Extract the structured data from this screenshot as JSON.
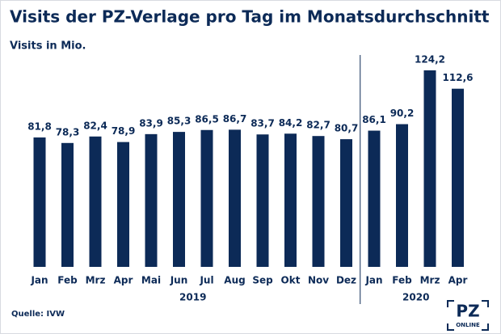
{
  "chart_data": {
    "type": "bar",
    "title": "Visits der PZ-Verlage pro Tag im Monatsdurchschnitt",
    "subtitle": "Visits in Mio.",
    "source": "Quelle: IVW",
    "color": "#0c2a57",
    "groups": [
      {
        "label": "2019",
        "categories": [
          "Jan",
          "Feb",
          "Mrz",
          "Apr",
          "Mai",
          "Jun",
          "Jul",
          "Aug",
          "Sep",
          "Okt",
          "Nov",
          "Dez"
        ],
        "values": [
          81.8,
          78.3,
          82.4,
          78.9,
          83.9,
          85.3,
          86.5,
          86.7,
          83.7,
          84.2,
          82.7,
          80.7
        ],
        "value_labels": [
          "81,8",
          "78,3",
          "82,4",
          "78,9",
          "83,9",
          "85,3",
          "86,5",
          "86,7",
          "83,7",
          "84,2",
          "82,7",
          "80,7"
        ]
      },
      {
        "label": "2020",
        "categories": [
          "Jan",
          "Feb",
          "Mrz",
          "Apr"
        ],
        "values": [
          86.1,
          90.2,
          124.2,
          112.6
        ],
        "value_labels": [
          "86,1",
          "90,2",
          "124,2",
          "112,6"
        ]
      }
    ]
  },
  "logo": {
    "text": "PZ",
    "subtext": "ONLINE"
  }
}
